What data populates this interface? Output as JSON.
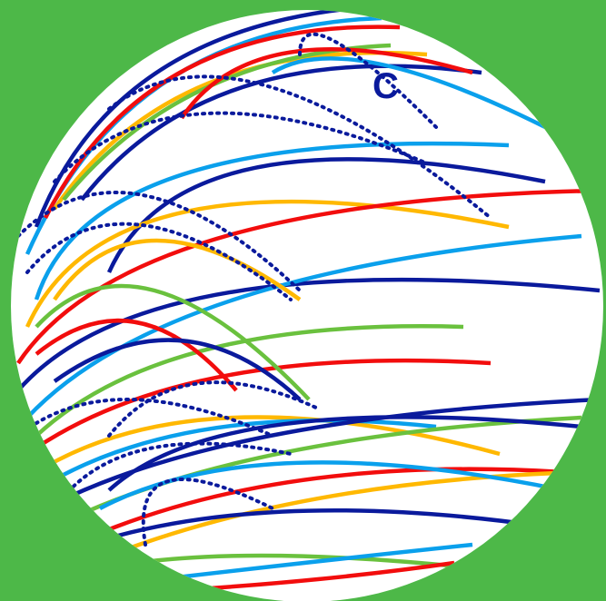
{
  "background_color": "#4db848",
  "globe": {
    "fill_color": "#ffffff",
    "label": "C",
    "label_color": "#0a1a9c",
    "arc_colors": {
      "navy": "#0a1a9c",
      "sky": "#0aa0ec",
      "red": "#f20d0d",
      "yellow": "#ffb800",
      "green": "#6ac13e"
    }
  }
}
